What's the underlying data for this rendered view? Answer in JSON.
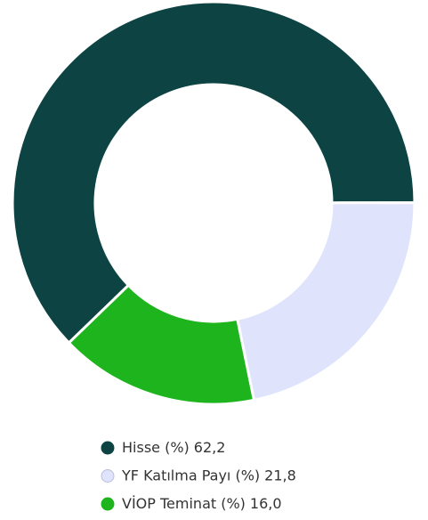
{
  "chart_data": {
    "type": "donut",
    "series": [
      {
        "name": "Hisse (%)",
        "color": "#0d4343",
        "values": [
          62.2
        ],
        "value_labels": [
          "62,2"
        ]
      },
      {
        "name": "YF Katılma Payı (%)",
        "color": "#dfe3fb",
        "values": [
          21.8
        ],
        "value_labels": [
          "21,8"
        ]
      },
      {
        "name": "VİOP Teminat (%)",
        "color": "#1db41d",
        "values": [
          16.0
        ],
        "value_labels": [
          "16,0"
        ]
      }
    ]
  }
}
